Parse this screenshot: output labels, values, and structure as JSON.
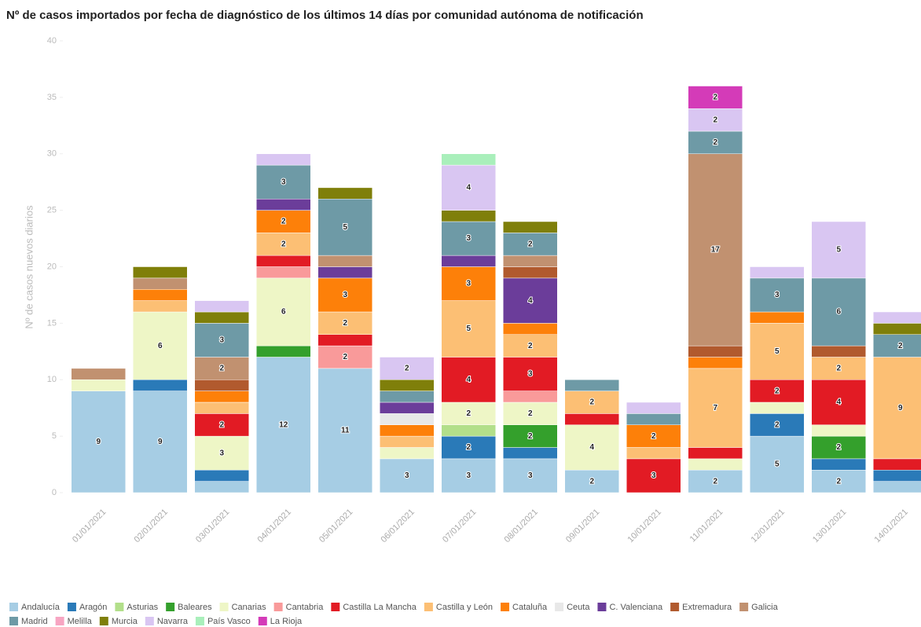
{
  "chart_data": {
    "type": "stacked_bar",
    "title": "Nº de casos importados por fecha de diagnóstico de los últimos 14 días por comunidad autónoma de notificación",
    "y_label": "Nº de casos nuevos diarios",
    "categories": [
      "01/01/2021",
      "02/01/2021",
      "03/01/2021",
      "04/01/2021",
      "05/01/2021",
      "06/01/2021",
      "07/01/2021",
      "08/01/2021",
      "09/01/2021",
      "10/01/2021",
      "11/01/2021",
      "12/01/2021",
      "13/01/2021",
      "14/01/2021"
    ],
    "ylim": [
      0,
      40
    ],
    "yticks": [
      0,
      5,
      10,
      15,
      20,
      25,
      30,
      35,
      40
    ],
    "series": [
      {
        "name": "Andalucía",
        "color": "#a6cde4",
        "values": [
          9,
          9,
          1,
          12,
          11,
          3,
          3,
          3,
          2,
          0,
          2,
          5,
          2,
          1
        ]
      },
      {
        "name": "Aragón",
        "color": "#2a7ab8",
        "values": [
          0,
          1,
          1,
          0,
          0,
          0,
          2,
          1,
          0,
          0,
          0,
          2,
          1,
          1
        ]
      },
      {
        "name": "Asturias",
        "color": "#b2df8a",
        "values": [
          0,
          0,
          0,
          0,
          0,
          0,
          1,
          0,
          0,
          0,
          0,
          0,
          0,
          0
        ]
      },
      {
        "name": "Baleares",
        "color": "#34a02c",
        "values": [
          0,
          0,
          0,
          1,
          0,
          0,
          0,
          2,
          0,
          0,
          0,
          0,
          2,
          0
        ]
      },
      {
        "name": "Canarias",
        "color": "#eef6c6",
        "values": [
          1,
          6,
          3,
          6,
          0,
          1,
          2,
          2,
          4,
          0,
          1,
          1,
          1,
          0
        ]
      },
      {
        "name": "Cantabria",
        "color": "#f99a9a",
        "values": [
          0,
          0,
          0,
          1,
          2,
          0,
          0,
          1,
          0,
          0,
          0,
          0,
          0,
          0
        ]
      },
      {
        "name": "Castilla La Mancha",
        "color": "#e21b24",
        "values": [
          0,
          0,
          2,
          1,
          1,
          0,
          4,
          3,
          1,
          3,
          1,
          2,
          4,
          1
        ]
      },
      {
        "name": "Castilla y León",
        "color": "#fcbf74",
        "values": [
          0,
          1,
          1,
          2,
          2,
          1,
          5,
          2,
          2,
          1,
          7,
          5,
          2,
          9
        ]
      },
      {
        "name": "Cataluña",
        "color": "#fd8009",
        "values": [
          0,
          1,
          1,
          2,
          3,
          1,
          3,
          1,
          0,
          2,
          1,
          1,
          0,
          0
        ]
      },
      {
        "name": "Ceuta",
        "color": "#e8e8e8",
        "values": [
          0,
          0,
          0,
          0,
          0,
          1,
          0,
          0,
          0,
          0,
          0,
          0,
          0,
          0
        ]
      },
      {
        "name": "C. Valenciana",
        "color": "#6b3d9a",
        "values": [
          0,
          0,
          0,
          1,
          1,
          1,
          1,
          4,
          0,
          0,
          0,
          0,
          0,
          0
        ]
      },
      {
        "name": "Extremadura",
        "color": "#b15a2e",
        "values": [
          0,
          0,
          1,
          0,
          0,
          0,
          0,
          1,
          0,
          0,
          1,
          0,
          1,
          0
        ]
      },
      {
        "name": "Galicia",
        "color": "#c19170",
        "values": [
          1,
          1,
          2,
          0,
          1,
          0,
          0,
          1,
          0,
          0,
          17,
          0,
          0,
          0
        ]
      },
      {
        "name": "Madrid",
        "color": "#6e9aa6",
        "values": [
          0,
          0,
          3,
          3,
          5,
          1,
          3,
          2,
          1,
          1,
          2,
          3,
          6,
          2
        ]
      },
      {
        "name": "Melilla",
        "color": "#f7a5c2",
        "values": [
          0,
          0,
          0,
          0,
          0,
          0,
          0,
          0,
          0,
          0,
          0,
          0,
          0,
          0
        ]
      },
      {
        "name": "Murcia",
        "color": "#7f7f0a",
        "values": [
          0,
          1,
          1,
          0,
          1,
          1,
          1,
          1,
          0,
          0,
          0,
          0,
          0,
          1
        ]
      },
      {
        "name": "Navarra",
        "color": "#d9c6f2",
        "values": [
          0,
          0,
          1,
          1,
          0,
          2,
          4,
          0,
          0,
          1,
          2,
          1,
          5,
          1
        ]
      },
      {
        "name": "País Vasco",
        "color": "#a9efbb",
        "values": [
          0,
          0,
          0,
          0,
          0,
          0,
          1,
          0,
          0,
          0,
          0,
          0,
          0,
          0
        ]
      },
      {
        "name": "La Rioja",
        "color": "#d43bb8",
        "values": [
          0,
          0,
          0,
          0,
          0,
          0,
          0,
          0,
          0,
          0,
          2,
          0,
          0,
          0
        ]
      }
    ]
  }
}
